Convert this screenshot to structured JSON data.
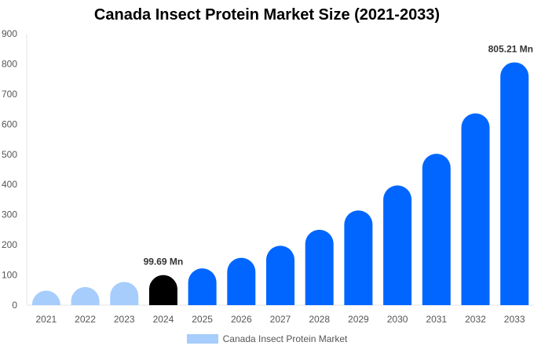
{
  "chart_data": {
    "type": "bar",
    "title": "Canada Insect Protein Market Size (2021-2033)",
    "xlabel": "",
    "ylabel": "",
    "categories": [
      "2021",
      "2022",
      "2023",
      "2024",
      "2025",
      "2026",
      "2027",
      "2028",
      "2029",
      "2030",
      "2031",
      "2032",
      "2033"
    ],
    "series": [
      {
        "name": "Canada Insect Protein Market",
        "values": [
          48,
          60,
          77,
          99.69,
          122,
          157,
          197,
          250,
          314,
          397,
          502,
          636,
          805.21
        ]
      }
    ],
    "ylim": [
      0,
      900
    ],
    "yticks": [
      0,
      100,
      200,
      300,
      400,
      500,
      600,
      700,
      800,
      900
    ],
    "grid": false,
    "legend_position": "bottom",
    "data_labels": [
      {
        "category": "2024",
        "text": "99.69 Mn"
      },
      {
        "category": "2033",
        "text": "805.21 Mn"
      }
    ],
    "colors": {
      "historical": "#a6cdfb",
      "base_year": "#000000",
      "forecast": "#0066ff",
      "legend": "#a6cdfb"
    }
  }
}
